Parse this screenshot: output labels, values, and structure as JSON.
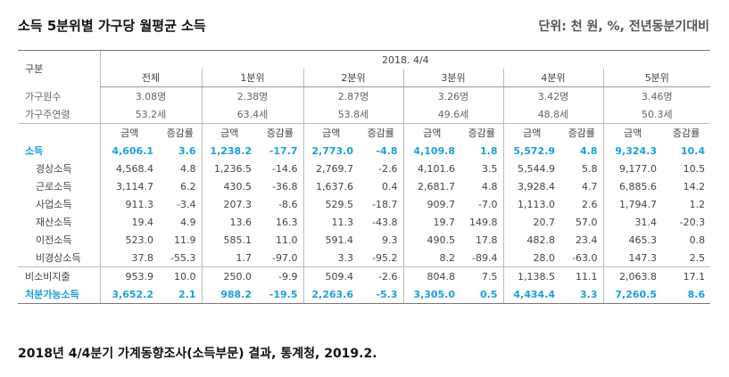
{
  "title": "소득 5분위별 가구당 월평균 소득",
  "unit": "단위: 천 원, %, 전년동분기대비",
  "table": {
    "corner": "구분",
    "period": "2018. 4/4",
    "groups": [
      "전체",
      "1분위",
      "2분위",
      "3분위",
      "4분위",
      "5분위"
    ],
    "household_size_label": "가구원수",
    "household_size": [
      "3.08명",
      "2.38명",
      "2.87명",
      "3.26명",
      "3.42명",
      "3.46명"
    ],
    "age_label": "가구주연령",
    "age": [
      "53.2세",
      "63.4세",
      "53.8세",
      "49.6세",
      "48.8세",
      "50.3세"
    ],
    "amount_label": "금액",
    "change_label": "증감률",
    "rows": [
      {
        "label": "소득",
        "highlight": true,
        "values": [
          "4,606.1",
          "3.6",
          "1,238.2",
          "-17.7",
          "2,773.0",
          "-4.8",
          "4,109.8",
          "1.8",
          "5,572.9",
          "4.8",
          "9,324.3",
          "10.4"
        ]
      },
      {
        "label": "경상소득",
        "sub": true,
        "values": [
          "4,568.4",
          "4.8",
          "1,236.5",
          "-14.6",
          "2,769.7",
          "-2.6",
          "4,101.6",
          "3.5",
          "5,544.9",
          "5.8",
          "9,177.0",
          "10.5"
        ]
      },
      {
        "label": "근로소득",
        "sub": true,
        "values": [
          "3,114.7",
          "6.2",
          "430.5",
          "-36.8",
          "1,637.6",
          "0.4",
          "2,681.7",
          "4.8",
          "3,928.4",
          "4.7",
          "6,885.6",
          "14.2"
        ]
      },
      {
        "label": "사업소득",
        "sub": true,
        "values": [
          "911.3",
          "-3.4",
          "207.3",
          "-8.6",
          "529.5",
          "-18.7",
          "909.7",
          "-7.0",
          "1,113.0",
          "2.6",
          "1,794.7",
          "1.2"
        ]
      },
      {
        "label": "재산소득",
        "sub": true,
        "values": [
          "19.4",
          "4.9",
          "13.6",
          "16.3",
          "11.3",
          "-43.8",
          "19.7",
          "149.8",
          "20.7",
          "57.0",
          "31.4",
          "-20.3"
        ]
      },
      {
        "label": "이전소득",
        "sub": true,
        "values": [
          "523.0",
          "11.9",
          "585.1",
          "11.0",
          "591.4",
          "9.3",
          "490.5",
          "17.8",
          "482.8",
          "23.4",
          "465.3",
          "0.8"
        ]
      },
      {
        "label": "비경상소득",
        "sub": true,
        "values": [
          "37.8",
          "-55.3",
          "1.7",
          "-97.0",
          "3.3",
          "-95.2",
          "8.2",
          "-89.4",
          "28.0",
          "-63.0",
          "147.3",
          "2.5"
        ]
      },
      {
        "label": "비소비지출",
        "values": [
          "953.9",
          "10.0",
          "250.0",
          "-9.9",
          "509.4",
          "-2.6",
          "804.8",
          "7.5",
          "1,138.5",
          "11.1",
          "2,063.8",
          "17.1"
        ]
      },
      {
        "label": "처분가능소득",
        "highlight": true,
        "values": [
          "3,652.2",
          "2.1",
          "988.2",
          "-19.5",
          "2,263.6",
          "-5.3",
          "3,305.0",
          "0.5",
          "4,434.4",
          "3.3",
          "7,260.5",
          "8.6"
        ]
      }
    ]
  },
  "source": "2018년 4/4분기 가계동향조사(소득부문) 결과, 통계청, 2019.2.",
  "colors": {
    "highlight": "#1aa0dc"
  }
}
